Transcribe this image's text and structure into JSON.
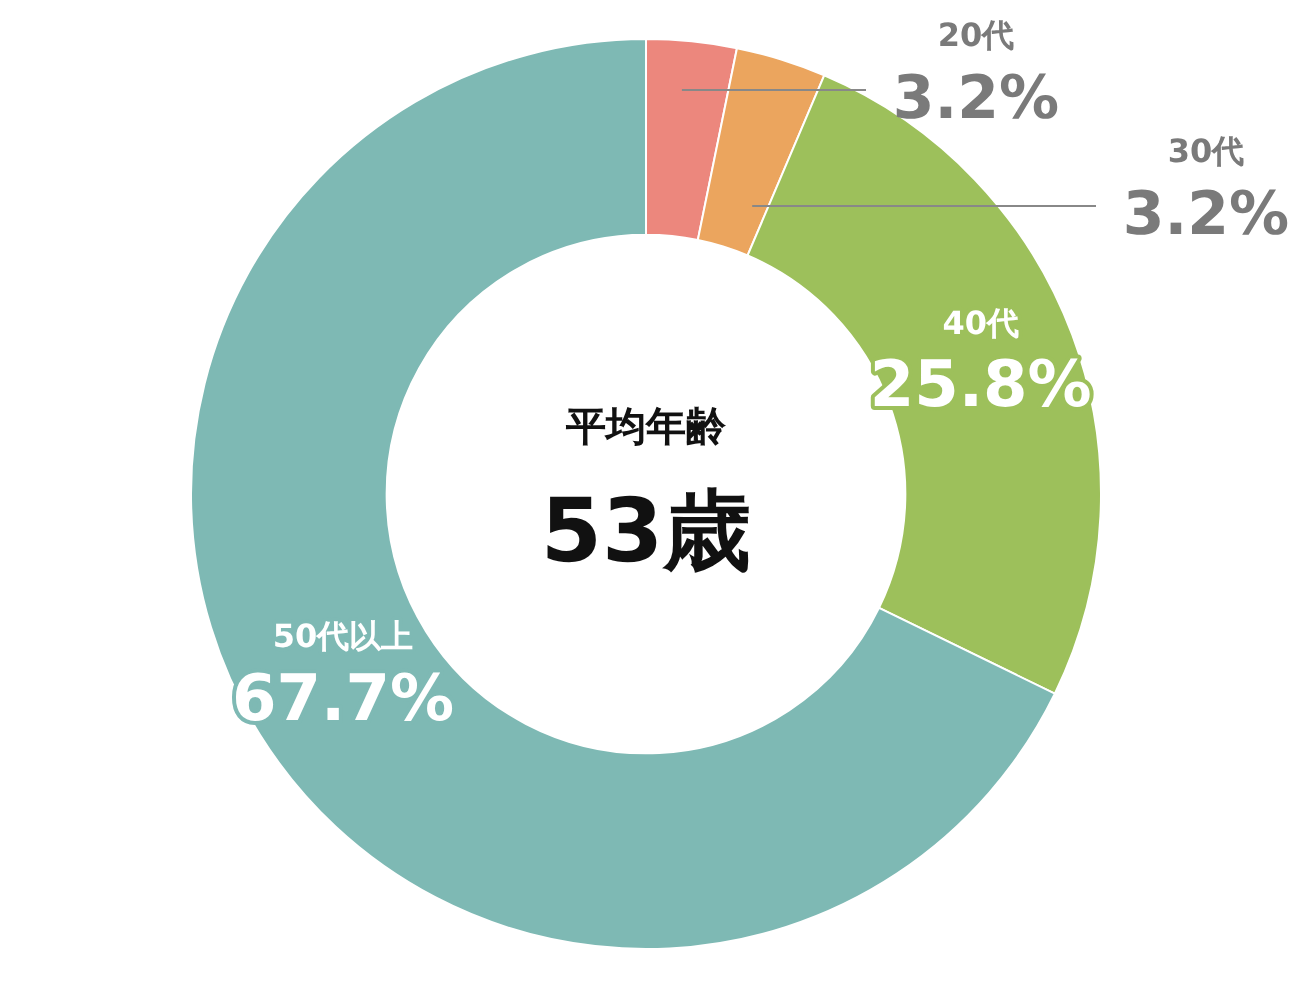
{
  "chart_data": {
    "type": "donut",
    "categories": [
      "20代",
      "30代",
      "40代",
      "50代以上"
    ],
    "values": [
      3.2,
      3.2,
      25.8,
      67.7
    ],
    "value_labels": [
      "3.2%",
      "3.2%",
      "25.8%",
      "67.7%"
    ],
    "colors": [
      "#ec877d",
      "#eba55e",
      "#9dc05b",
      "#7eb9b4"
    ],
    "annotations": [
      "平均年齢",
      "53歳"
    ],
    "legend": false
  }
}
